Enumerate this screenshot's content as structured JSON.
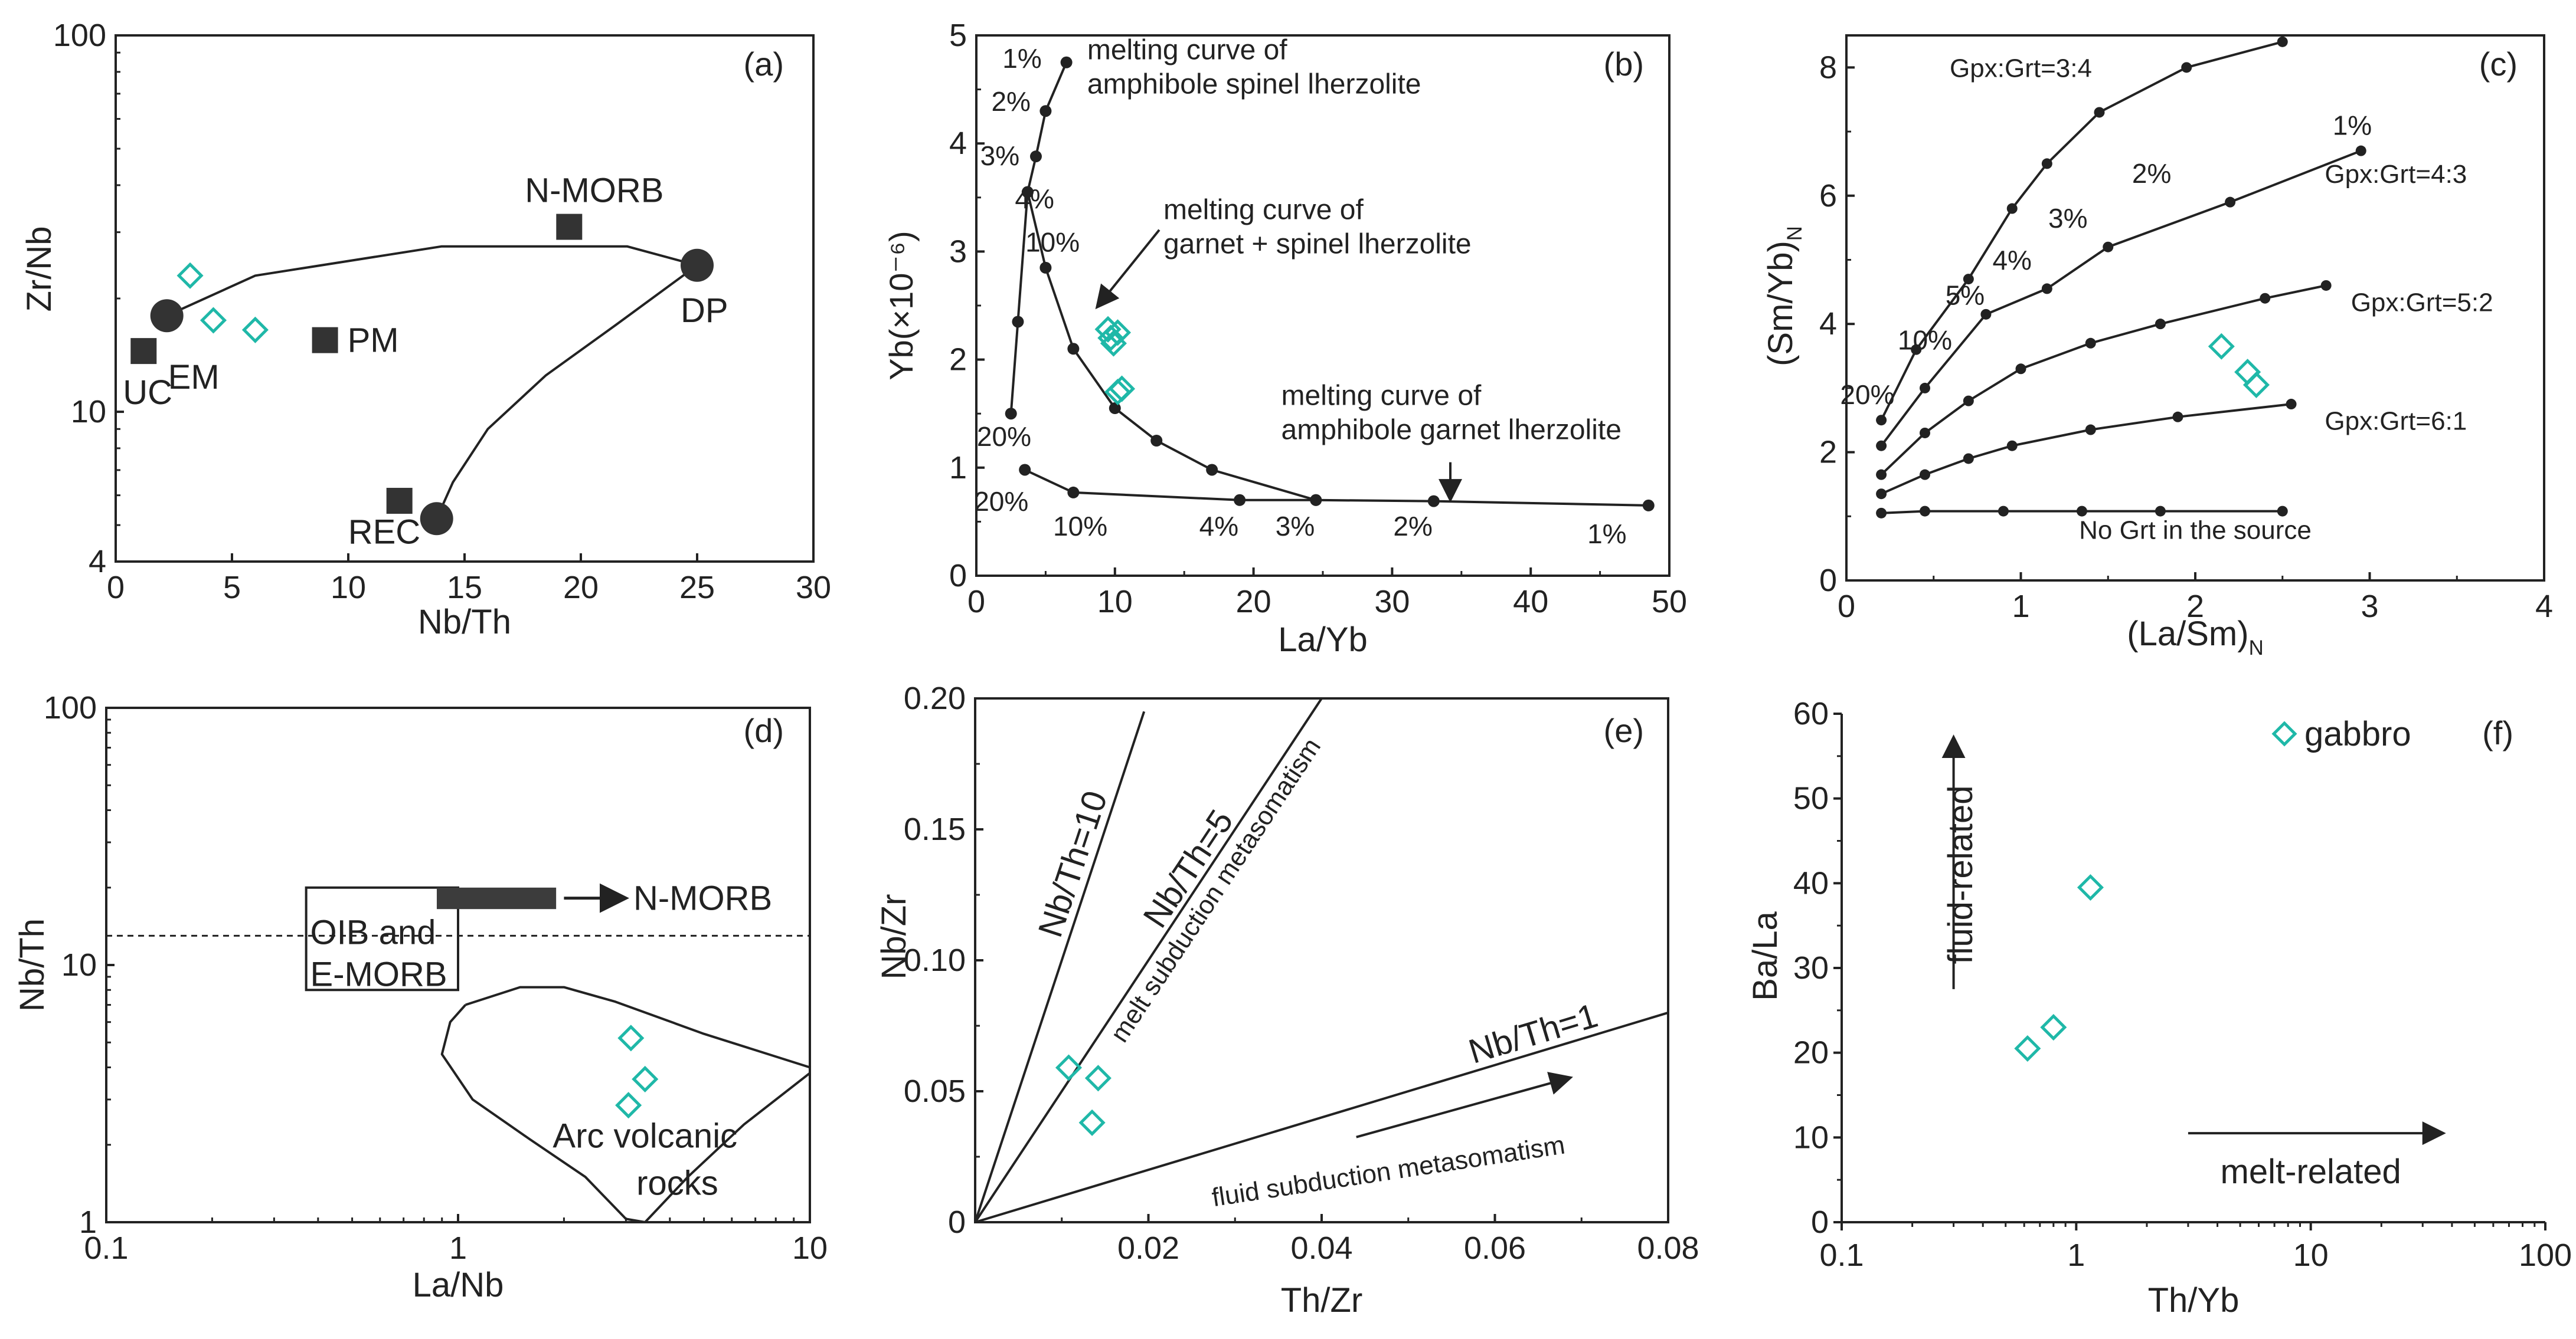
{
  "colors": {
    "axis": "#222222",
    "sample": "#1fb8a8",
    "fill": "#333333",
    "bar": "#3c3c3c"
  },
  "chart_data": [
    {
      "id": "a",
      "type": "scatter",
      "label": "(a)",
      "xlabel": "Nb/Th",
      "ylabel": "Zr/Nb",
      "xlim": [
        0,
        30
      ],
      "ylim": [
        4,
        100
      ],
      "yscale": "log",
      "xticks": [
        0,
        5,
        10,
        15,
        20,
        25,
        30
      ],
      "yticks": [
        4,
        10,
        100
      ],
      "curves": [
        [
          [
            2.2,
            18
          ],
          [
            6,
            23
          ],
          [
            14,
            27.5
          ],
          [
            22,
            27.5
          ],
          [
            25,
            24.5
          ]
        ],
        [
          [
            13.8,
            5.2
          ],
          [
            14.5,
            6.5
          ],
          [
            16,
            9
          ],
          [
            18.5,
            12.5
          ],
          [
            21.5,
            17
          ],
          [
            25,
            24.5
          ]
        ]
      ],
      "endmembers": [
        {
          "name": "EM",
          "x": 2.2,
          "y": 18,
          "shape": "circle"
        },
        {
          "name": "DP",
          "x": 25,
          "y": 24.5,
          "shape": "circle"
        },
        {
          "name": "REC",
          "x": 13.8,
          "y": 5.2,
          "shape": "circle"
        },
        {
          "name": "N-MORB",
          "x": 19.5,
          "y": 31,
          "shape": "square"
        },
        {
          "name": "PM",
          "x": 9,
          "y": 15.5,
          "shape": "square"
        },
        {
          "name": "UC",
          "x": 1.2,
          "y": 14.5,
          "shape": "square"
        },
        {
          "name": "",
          "x": 12.2,
          "y": 5.8,
          "shape": "square"
        }
      ],
      "samples": [
        {
          "x": 3.2,
          "y": 23
        },
        {
          "x": 4.2,
          "y": 17.5
        },
        {
          "x": 6,
          "y": 16.5
        }
      ]
    },
    {
      "id": "b",
      "type": "line",
      "label": "(b)",
      "xlabel": "La/Yb",
      "ylabel": "Yb(×10⁻⁶)",
      "xlim": [
        0,
        50
      ],
      "ylim": [
        0,
        5
      ],
      "xticks": [
        0,
        10,
        20,
        30,
        40,
        50
      ],
      "yticks": [
        0,
        1,
        2,
        3,
        4,
        5
      ],
      "series": [
        {
          "name": "melting curve of amphibole spinel lherzolite",
          "points": [
            [
              2.5,
              1.5
            ],
            [
              3,
              2.35
            ],
            [
              3.7,
              3.55
            ],
            [
              4.3,
              3.88
            ],
            [
              5,
              4.3
            ],
            [
              6.5,
              4.75
            ]
          ]
        },
        {
          "name": "melting curve of garnet + spinel lherzolite",
          "points": [
            [
              3.7,
              3.55
            ],
            [
              5,
              2.85
            ],
            [
              7,
              2.1
            ],
            [
              10,
              1.55
            ],
            [
              13,
              1.25
            ],
            [
              17,
              0.98
            ],
            [
              24.5,
              0.7
            ]
          ]
        },
        {
          "name": "melting curve of amphibole garnet lherzolite",
          "points": [
            [
              3.5,
              0.98
            ],
            [
              7,
              0.77
            ],
            [
              19,
              0.7
            ],
            [
              24.5,
              0.7
            ],
            [
              33,
              0.69
            ],
            [
              48.5,
              0.65
            ]
          ]
        }
      ],
      "percent_labels": [
        {
          "text": "1%",
          "x": 3.3,
          "y": 4.7
        },
        {
          "text": "2%",
          "x": 2.5,
          "y": 4.3
        },
        {
          "text": "3%",
          "x": 1.7,
          "y": 3.8
        },
        {
          "text": "4%",
          "x": 4.2,
          "y": 3.4
        },
        {
          "text": "10%",
          "x": 5.5,
          "y": 3.0
        },
        {
          "text": "20%",
          "x": 2.0,
          "y": 1.2
        },
        {
          "text": "20%",
          "x": 1.8,
          "y": 0.6
        },
        {
          "text": "10%",
          "x": 7.5,
          "y": 0.37
        },
        {
          "text": "4%",
          "x": 17.5,
          "y": 0.37
        },
        {
          "text": "3%",
          "x": 23,
          "y": 0.37
        },
        {
          "text": "2%",
          "x": 31.5,
          "y": 0.37
        },
        {
          "text": "1%",
          "x": 45.5,
          "y": 0.3
        }
      ],
      "annotations": [
        {
          "lines": [
            "melting curve of",
            "amphibole spinel lherzolite"
          ],
          "x": 8.0,
          "y": 4.78
        },
        {
          "lines": [
            "melting curve of",
            "garnet + spinel lherzolite"
          ],
          "x": 13.5,
          "y": 3.3
        },
        {
          "lines": [
            "melting curve of",
            "amphibole garnet lherzolite"
          ],
          "x": 22,
          "y": 1.58
        }
      ],
      "samples": [
        {
          "x": 9.5,
          "y": 2.28
        },
        {
          "x": 9.7,
          "y": 2.2
        },
        {
          "x": 10.2,
          "y": 2.25
        },
        {
          "x": 9.9,
          "y": 2.15
        },
        {
          "x": 10.5,
          "y": 1.73
        },
        {
          "x": 10.2,
          "y": 1.7
        }
      ]
    },
    {
      "id": "c",
      "type": "line",
      "label": "(c)",
      "xlabel": "(La/Sm)",
      "xlabel_sub": "N",
      "ylabel": "(Sm/Yb)",
      "ylabel_sub": "N",
      "xlim": [
        0,
        4
      ],
      "ylim": [
        0,
        8.5
      ],
      "xticks": [
        0,
        1,
        2,
        3,
        4
      ],
      "yticks": [
        0,
        2,
        4,
        6,
        8
      ],
      "series": [
        {
          "name": "Gpx:Grt=3:4",
          "points": [
            [
              0.2,
              2.5
            ],
            [
              0.4,
              3.6
            ],
            [
              0.7,
              4.7
            ],
            [
              0.95,
              5.8
            ],
            [
              1.15,
              6.5
            ],
            [
              1.45,
              7.3
            ],
            [
              1.95,
              8.0
            ],
            [
              2.5,
              8.4
            ]
          ]
        },
        {
          "name": "Gpx:Grt=4:3",
          "points": [
            [
              0.2,
              2.1
            ],
            [
              0.45,
              3.0
            ],
            [
              0.8,
              4.15
            ],
            [
              1.15,
              4.55
            ],
            [
              1.5,
              5.2
            ],
            [
              2.2,
              5.9
            ],
            [
              2.95,
              6.7
            ]
          ]
        },
        {
          "name": "Gpx:Grt=5:2",
          "points": [
            [
              0.2,
              1.65
            ],
            [
              0.45,
              2.3
            ],
            [
              0.7,
              2.8
            ],
            [
              1.0,
              3.3
            ],
            [
              1.4,
              3.7
            ],
            [
              1.8,
              4.0
            ],
            [
              2.4,
              4.4
            ],
            [
              2.75,
              4.6
            ]
          ]
        },
        {
          "name": "Gpx:Grt=6:1",
          "points": [
            [
              0.2,
              1.35
            ],
            [
              0.45,
              1.65
            ],
            [
              0.7,
              1.9
            ],
            [
              0.95,
              2.1
            ],
            [
              1.4,
              2.35
            ],
            [
              1.9,
              2.55
            ],
            [
              2.55,
              2.75
            ]
          ]
        },
        {
          "name": "No Grt in the source",
          "points": [
            [
              0.2,
              1.05
            ],
            [
              0.45,
              1.08
            ],
            [
              0.9,
              1.08
            ],
            [
              1.35,
              1.08
            ],
            [
              1.8,
              1.08
            ],
            [
              2.5,
              1.08
            ]
          ]
        }
      ],
      "curve_labels": [
        "Gpx:Grt=3:4",
        "Gpx:Grt=4:3",
        "Gpx:Grt=5:2",
        "Gpx:Grt=6:1",
        "No Grt in the source"
      ],
      "percent_labels": [
        {
          "text": "1%",
          "x": 2.9,
          "y": 6.95
        },
        {
          "text": "2%",
          "x": 1.75,
          "y": 6.2
        },
        {
          "text": "3%",
          "x": 1.27,
          "y": 5.5
        },
        {
          "text": "4%",
          "x": 0.95,
          "y": 4.85
        },
        {
          "text": "5%",
          "x": 0.68,
          "y": 4.3
        },
        {
          "text": "10%",
          "x": 0.45,
          "y": 3.6
        },
        {
          "text": "20%",
          "x": 0.12,
          "y": 2.75
        }
      ],
      "samples": [
        {
          "x": 2.15,
          "y": 3.65
        },
        {
          "x": 2.3,
          "y": 3.25
        },
        {
          "x": 2.35,
          "y": 3.05
        }
      ]
    },
    {
      "id": "d",
      "type": "scatter",
      "label": "(d)",
      "xlabel": "La/Nb",
      "ylabel": "Nb/Th",
      "xlim": [
        0.1,
        10
      ],
      "ylim": [
        1,
        100
      ],
      "xscale": "log",
      "yscale": "log",
      "xticks": [
        0.1,
        1,
        10
      ],
      "yticks": [
        1,
        10,
        100
      ],
      "reference_line": {
        "y": 13
      },
      "fields": [
        {
          "name": "OIB and E-MORB",
          "x": [
            0.37,
            1.0
          ],
          "y": [
            8,
            20
          ]
        },
        {
          "name": "N-MORB",
          "x": [
            0.87,
            1.9
          ],
          "y": [
            16.5,
            20
          ]
        }
      ],
      "field_labels": {
        "oib": "OIB and",
        "emorb": "E-MORB",
        "nmorb": "N-MORB",
        "arc1": "Arc volcanic",
        "arc2": "rocks"
      },
      "arc_outline": [
        [
          1.05,
          7
        ],
        [
          0.95,
          6
        ],
        [
          0.9,
          4.5
        ],
        [
          1.1,
          3
        ],
        [
          1.6,
          2.1
        ],
        [
          2.3,
          1.5
        ],
        [
          3.0,
          1.03
        ],
        [
          3.4,
          1.0
        ],
        [
          4.5,
          1.5
        ],
        [
          6.5,
          2.4
        ],
        [
          10,
          3.8
        ],
        [
          10,
          4.0
        ],
        [
          5,
          5.4
        ],
        [
          2.8,
          7.2
        ],
        [
          2.0,
          8.2
        ],
        [
          1.5,
          8.2
        ],
        [
          1.05,
          7
        ]
      ],
      "samples": [
        {
          "x": 3.1,
          "y": 5.2
        },
        {
          "x": 3.4,
          "y": 3.6
        },
        {
          "x": 3.05,
          "y": 2.85
        }
      ]
    },
    {
      "id": "e",
      "type": "line",
      "label": "(e)",
      "xlabel": "Th/Zr",
      "ylabel": "Nb/Zr",
      "xlim": [
        0,
        0.08
      ],
      "ylim": [
        0,
        0.2
      ],
      "xticks": [
        0.02,
        0.04,
        0.06,
        0.08
      ],
      "yticks": [
        0,
        0.05,
        0.1,
        0.15,
        0.2
      ],
      "xtick_labels": [
        "0.02",
        "0.04",
        "0.06",
        "0.08"
      ],
      "ytick_labels": [
        "0",
        "0.05",
        "0.10",
        "0.15",
        "0.20"
      ],
      "series": [
        {
          "name": "Nb/Th=10",
          "points": [
            [
              0,
              0
            ],
            [
              0.0195,
              0.195
            ]
          ]
        },
        {
          "name": "Nb/Th=5",
          "points": [
            [
              0,
              0
            ],
            [
              0.04,
              0.2
            ]
          ]
        },
        {
          "name": "Nb/Th=1",
          "points": [
            [
              0,
              0
            ],
            [
              0.08,
              0.08
            ]
          ]
        }
      ],
      "texts": {
        "melt": "melt subduction metasomatism",
        "fluid": "fluid subduction metasomatism"
      },
      "samples": [
        {
          "x": 0.0108,
          "y": 0.059
        },
        {
          "x": 0.0142,
          "y": 0.055
        },
        {
          "x": 0.0135,
          "y": 0.038
        }
      ]
    },
    {
      "id": "f",
      "type": "scatter",
      "label": "(f)",
      "xlabel": "Th/Yb",
      "ylabel": "Ba/La",
      "xlim": [
        0.1,
        100
      ],
      "ylim": [
        0,
        60
      ],
      "xscale": "log",
      "xticks": [
        0.1,
        1,
        10,
        100
      ],
      "yticks": [
        0,
        10,
        20,
        30,
        40,
        50,
        60
      ],
      "legend": "gabbro",
      "arrows": {
        "fluid": "fluid-related",
        "melt": "melt-related"
      },
      "samples": [
        {
          "x": 0.62,
          "y": 20.5
        },
        {
          "x": 0.8,
          "y": 23
        },
        {
          "x": 1.15,
          "y": 39.5
        }
      ]
    }
  ]
}
